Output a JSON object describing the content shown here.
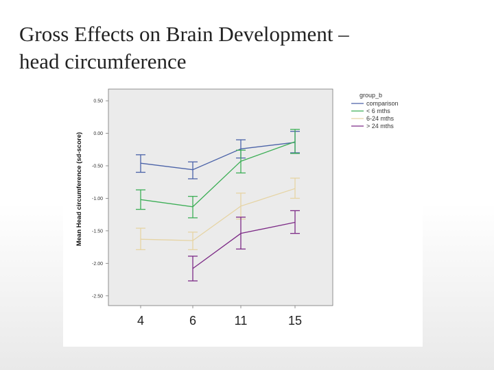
{
  "slide": {
    "title_line1": "Gross Effects on Brain Development –",
    "title_line2": "head circumference"
  },
  "chart_data": {
    "type": "line",
    "title": "",
    "xlabel": "",
    "ylabel": "Mean Head circumference (sd-score)",
    "x": [
      4,
      6,
      11,
      15
    ],
    "x_tick_labels": [
      "4",
      "6",
      "11",
      "15"
    ],
    "y_ticks": [
      0.5,
      0.0,
      -0.5,
      -1.0,
      -1.5,
      -2.0,
      -2.5
    ],
    "y_tick_labels": [
      "0.50",
      "0.00",
      "-0.50",
      "-1.00",
      "-1.50",
      "-2.00",
      "-2.50"
    ],
    "ylim": [
      -2.65,
      0.68
    ],
    "grid": false,
    "error_bars": true,
    "legend": {
      "title": "group_b",
      "placement": "right"
    },
    "series": [
      {
        "name": "comparison",
        "color": "#4a62a8",
        "values": [
          -0.46,
          -0.56,
          -0.24,
          -0.14
        ],
        "ci_low": [
          -0.6,
          -0.7,
          -0.38,
          -0.3
        ],
        "ci_high": [
          -0.33,
          -0.44,
          -0.1,
          0.03
        ]
      },
      {
        "name": "< 6 mths",
        "color": "#3cae56",
        "values": [
          -1.02,
          -1.13,
          -0.43,
          -0.13
        ],
        "ci_low": [
          -1.17,
          -1.3,
          -0.61,
          -0.31
        ],
        "ci_high": [
          -0.87,
          -0.97,
          -0.26,
          0.06
        ]
      },
      {
        "name": "6-24 mths",
        "color": "#e6d4a4",
        "values": [
          -1.63,
          -1.65,
          -1.12,
          -0.85
        ],
        "ci_low": [
          -1.79,
          -1.79,
          -1.32,
          -1.0
        ],
        "ci_high": [
          -1.46,
          -1.52,
          -0.92,
          -0.69
        ]
      },
      {
        "name": "> 24 mths",
        "color": "#7c2a86",
        "values": [
          null,
          -2.08,
          -1.54,
          -1.37
        ],
        "ci_low": [
          null,
          -2.27,
          -1.78,
          -1.54
        ],
        "ci_high": [
          null,
          -1.89,
          -1.29,
          -1.19
        ]
      }
    ]
  },
  "colors": {
    "plot_background": "#ebebeb",
    "axis": "#777777"
  }
}
